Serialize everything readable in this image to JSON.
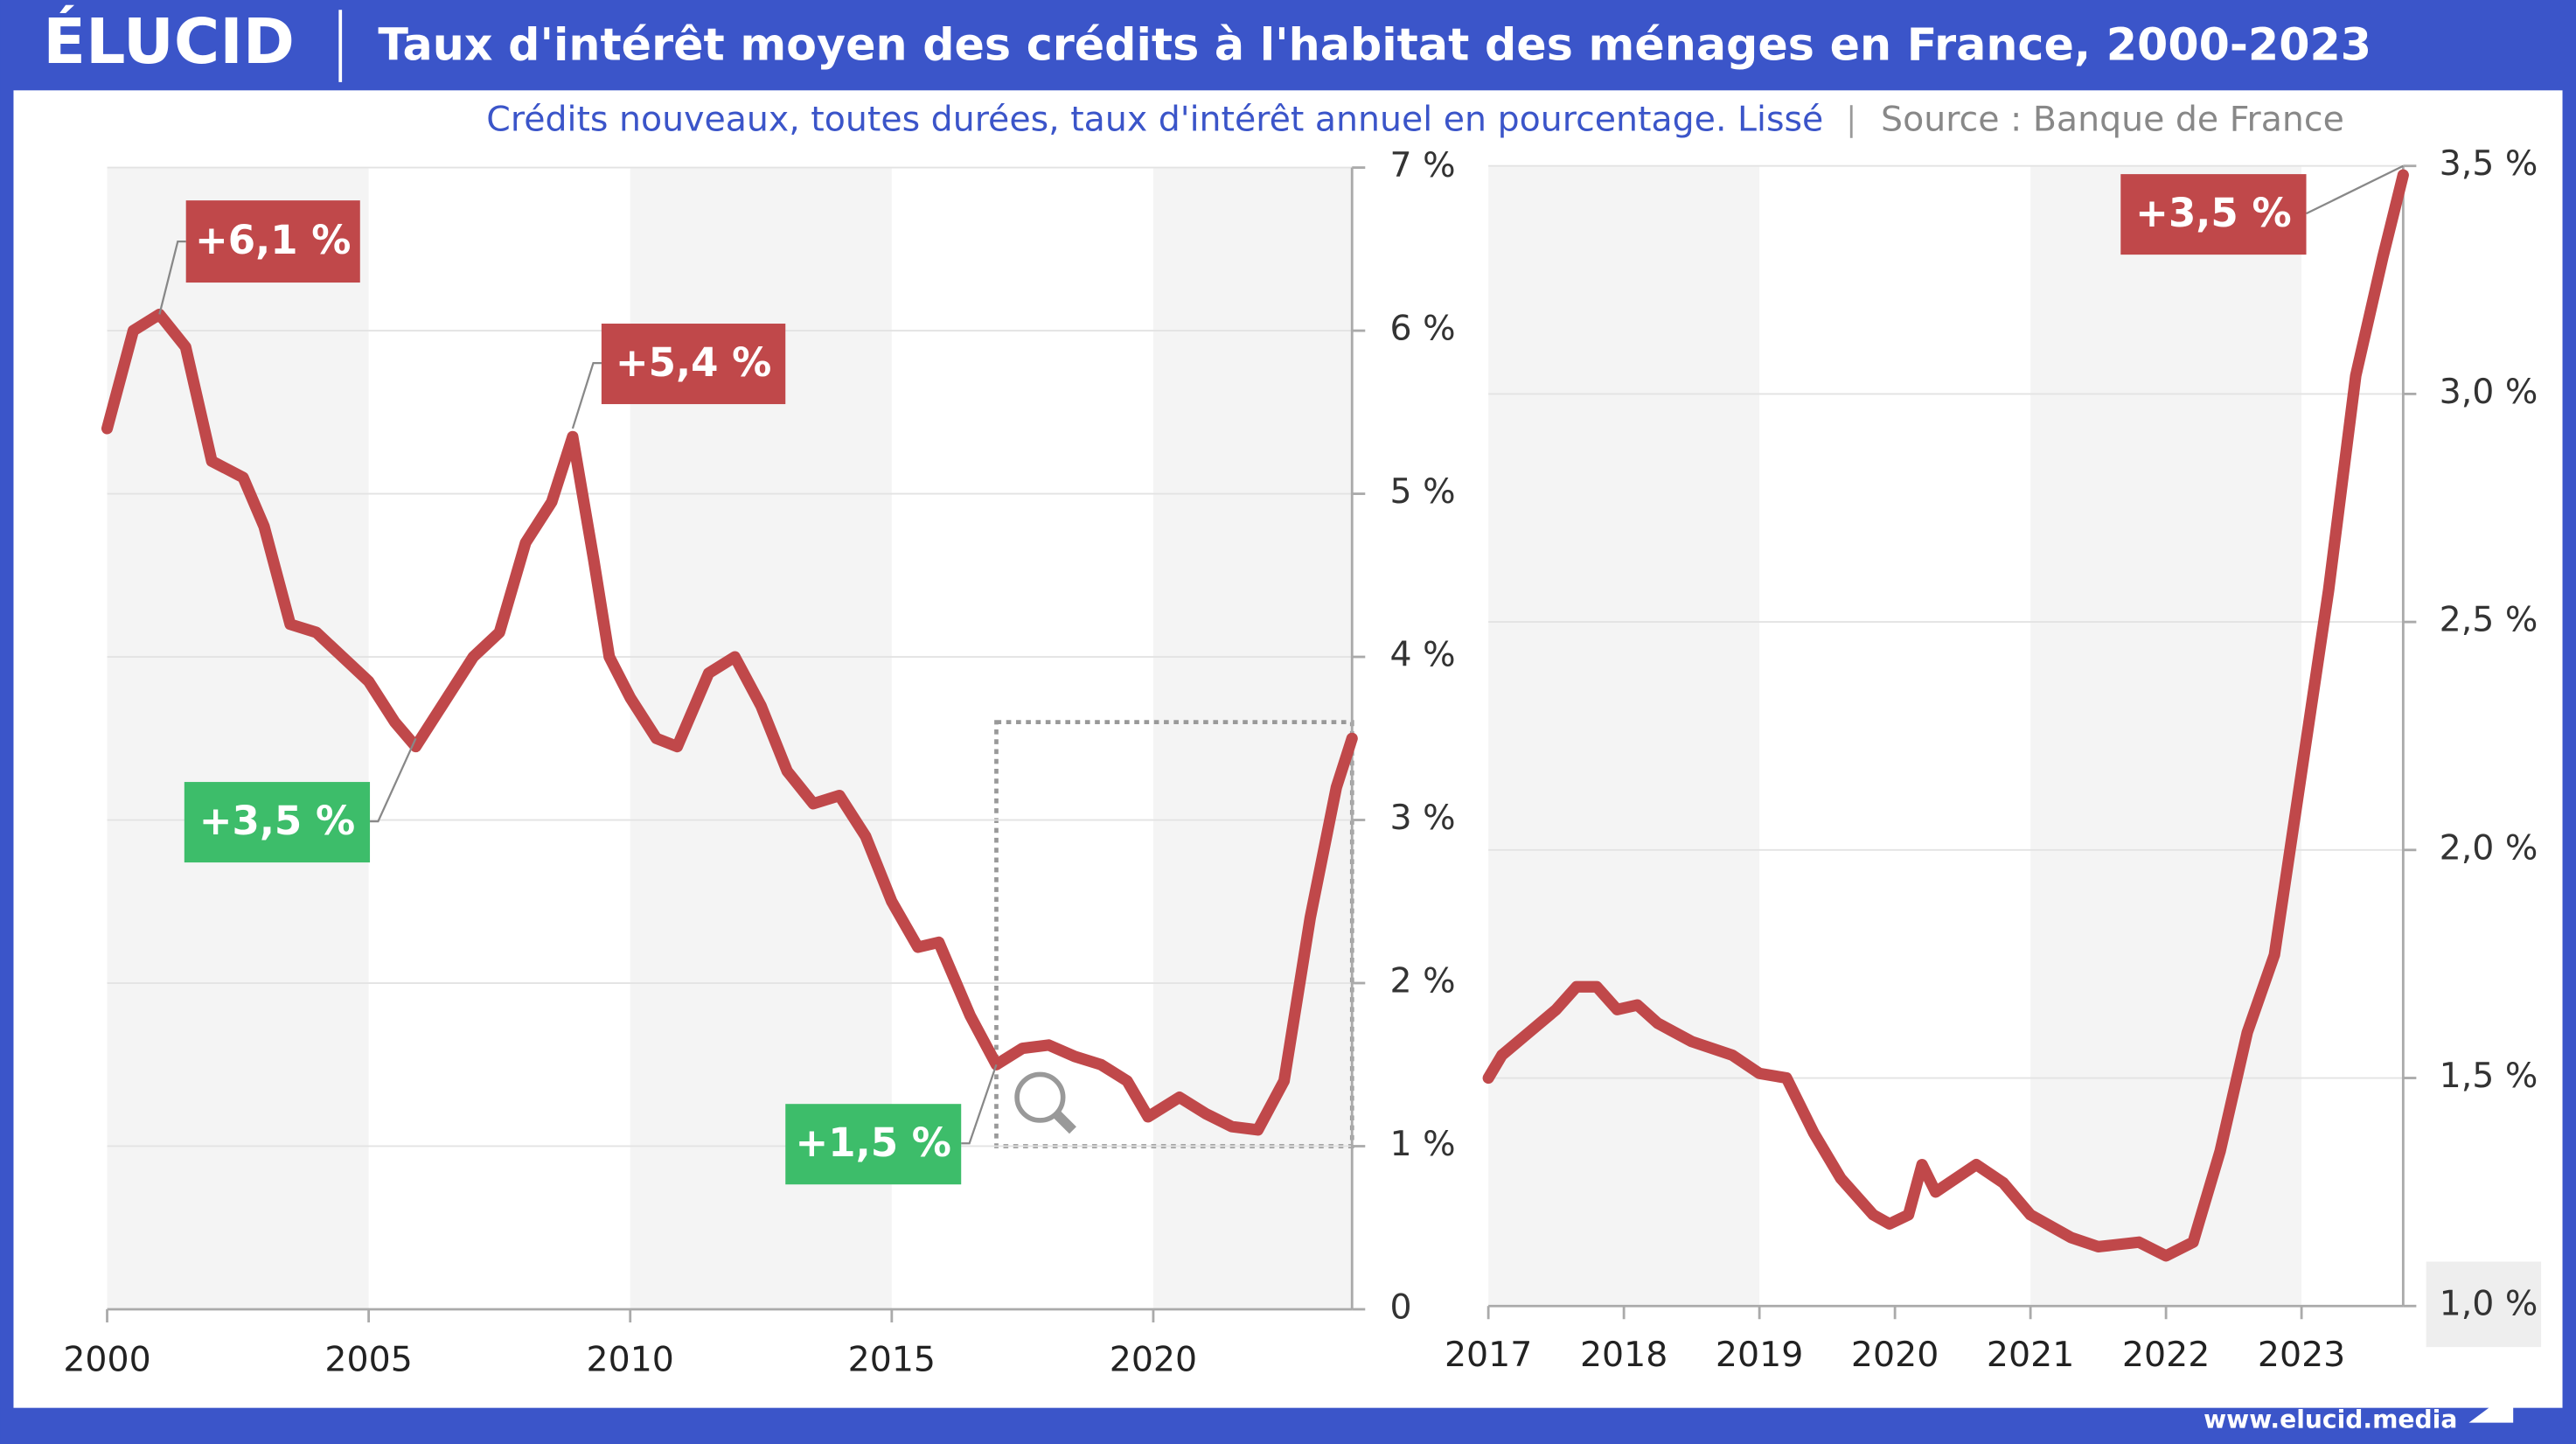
{
  "logo": "ÉLUCID",
  "title": "Taux d'intérêt moyen des crédits à l'habitat des ménages en France, 2000-2023",
  "subtitle": "Crédits nouveaux, toutes durées, taux d'intérêt annuel en pourcentage. Lissé",
  "source": "Source : Banque de France",
  "footer": "www.elucid.media",
  "chart_data": [
    {
      "type": "line",
      "x": [
        2000,
        2000.5,
        2001,
        2001.5,
        2002,
        2002.6,
        2003,
        2003.5,
        2004,
        2004.5,
        2005,
        2005.5,
        2005.9,
        2006.5,
        2007,
        2007.5,
        2008,
        2008.5,
        2008.9,
        2009.3,
        2009.6,
        2010,
        2010.5,
        2010.9,
        2011.5,
        2012,
        2012.5,
        2013,
        2013.5,
        2014,
        2014.5,
        2015,
        2015.5,
        2015.9,
        2016.5,
        2017,
        2017.5,
        2018,
        2018.5,
        2019,
        2019.5,
        2019.9,
        2020.5,
        2021,
        2021.5,
        2022,
        2022.5,
        2023,
        2023.5,
        2023.8
      ],
      "series": [
        {
          "color": "#c0484a",
          "values": [
            5.4,
            6.0,
            6.1,
            5.9,
            5.2,
            5.1,
            4.8,
            4.2,
            4.15,
            4.0,
            3.85,
            3.6,
            3.45,
            3.75,
            4.0,
            4.15,
            4.7,
            4.95,
            5.35,
            4.6,
            4.0,
            3.75,
            3.5,
            3.45,
            3.9,
            4.0,
            3.7,
            3.3,
            3.1,
            3.15,
            2.9,
            2.5,
            2.22,
            2.25,
            1.8,
            1.5,
            1.6,
            1.62,
            1.55,
            1.5,
            1.4,
            1.18,
            1.3,
            1.2,
            1.12,
            1.1,
            1.4,
            2.4,
            3.2,
            3.5
          ]
        }
      ],
      "xlim": [
        2000,
        2023.8
      ],
      "xticks": [
        2000,
        2005,
        2010,
        2015,
        2020
      ],
      "ylim": [
        0,
        7
      ],
      "yticks": [
        0,
        {
          "value": 1,
          "label": "1 %"
        },
        {
          "value": 2,
          "label": "2 %"
        },
        {
          "value": 3,
          "label": "3 %"
        },
        {
          "value": 4,
          "label": "4 %"
        },
        {
          "value": 5,
          "label": "5 %"
        },
        {
          "value": 6,
          "label": "6 %"
        },
        {
          "value": 7,
          "label": "7 %"
        }
      ],
      "grid": true,
      "annotations": [
        {
          "label": "+6,1 %",
          "x": 2001,
          "y": 6.1,
          "color": "#c0484a"
        },
        {
          "label": "+5,4 %",
          "x": 2008.9,
          "y": 5.4,
          "color": "#c0484a"
        },
        {
          "label": "+3,5 %",
          "x": 2005.9,
          "y": 3.5,
          "color": "#3dbd6a"
        },
        {
          "label": "+1,5 %",
          "x": 2017,
          "y": 1.5,
          "color": "#3dbd6a"
        }
      ]
    },
    {
      "type": "line",
      "x": [
        2017,
        2017.1,
        2017.3,
        2017.5,
        2017.65,
        2017.8,
        2017.95,
        2018.1,
        2018.25,
        2018.5,
        2018.8,
        2019.0,
        2019.2,
        2019.4,
        2019.6,
        2019.84,
        2019.96,
        2020.1,
        2020.2,
        2020.3,
        2020.6,
        2020.8,
        2021.0,
        2021.3,
        2021.5,
        2021.8,
        2022.0,
        2022.2,
        2022.4,
        2022.6,
        2022.8,
        2023.0,
        2023.2,
        2023.4,
        2023.6,
        2023.75
      ],
      "series": [
        {
          "color": "#c0484a",
          "values": [
            1.5,
            1.55,
            1.6,
            1.65,
            1.7,
            1.7,
            1.65,
            1.66,
            1.62,
            1.58,
            1.55,
            1.51,
            1.5,
            1.38,
            1.28,
            1.2,
            1.18,
            1.2,
            1.31,
            1.25,
            1.31,
            1.27,
            1.2,
            1.15,
            1.13,
            1.14,
            1.11,
            1.14,
            1.34,
            1.6,
            1.77,
            2.17,
            2.57,
            3.04,
            3.3,
            3.48
          ]
        }
      ],
      "xlim": [
        2017,
        2023.75
      ],
      "xticks": [
        2017,
        2018,
        2019,
        2020,
        2021,
        2022,
        2023
      ],
      "ylim": [
        1.0,
        3.5
      ],
      "yticks": [
        {
          "value": 1.0,
          "label": "1,0 %"
        },
        {
          "value": 1.5,
          "label": "1,5 %"
        },
        {
          "value": 2.0,
          "label": "2,0 %"
        },
        {
          "value": 2.5,
          "label": "2,5 %"
        },
        {
          "value": 3.0,
          "label": "3,0 %"
        },
        {
          "value": 3.5,
          "label": "3,5 %"
        }
      ],
      "grid": true,
      "annotations": [
        {
          "label": "+3,5 %",
          "x": 2023.75,
          "y": 3.5,
          "color": "#c0484a"
        }
      ]
    }
  ]
}
